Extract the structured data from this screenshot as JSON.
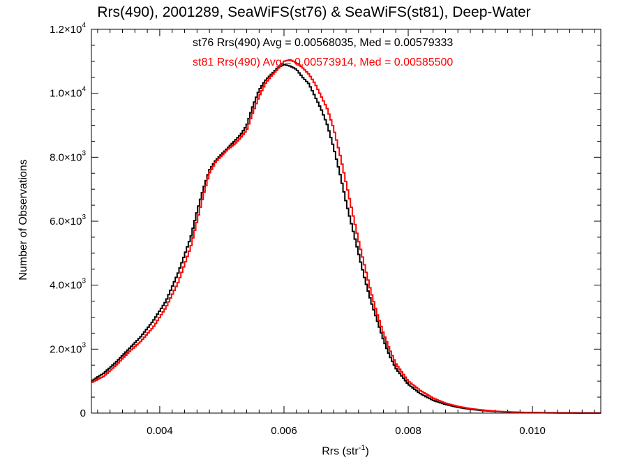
{
  "chart_data": {
    "type": "line",
    "title": "Rrs(490), 2001289, SeaWiFS(st76) & SeaWiFS(st81), Deep-Water",
    "xlabel_main": "Rrs (str",
    "xlabel_sup": "-1",
    "xlabel_close": ")",
    "ylabel": "Number of Observations",
    "xlim": [
      0.0029,
      0.0111
    ],
    "ylim": [
      0,
      12000
    ],
    "grid": false,
    "x_ticks": [
      {
        "value": 0.004,
        "label": "0.004"
      },
      {
        "value": 0.006,
        "label": "0.006"
      },
      {
        "value": 0.008,
        "label": "0.008"
      },
      {
        "value": 0.01,
        "label": "0.010"
      }
    ],
    "y_ticks": [
      {
        "value": 0,
        "label": "0",
        "sup": ""
      },
      {
        "value": 2000,
        "label": "2.0×10",
        "sup": "3"
      },
      {
        "value": 4000,
        "label": "4.0×10",
        "sup": "3"
      },
      {
        "value": 6000,
        "label": "6.0×10",
        "sup": "3"
      },
      {
        "value": 8000,
        "label": "8.0×10",
        "sup": "3"
      },
      {
        "value": 10000,
        "label": "1.0×10",
        "sup": "4"
      },
      {
        "value": 12000,
        "label": "1.2×10",
        "sup": "4"
      }
    ],
    "annotations": {
      "st76": "st76 Rrs(490) Avg = 0.00568035, Med = 0.00579333",
      "st81": "st81 Rrs(490) Avg = 0.00573914, Med = 0.00585500"
    },
    "series": [
      {
        "name": "st76",
        "color": "#000000",
        "x": [
          0.0029,
          0.0031,
          0.0033,
          0.0035,
          0.0037,
          0.0039,
          0.0041,
          0.0043,
          0.0045,
          0.0046,
          0.0047,
          0.0048,
          0.0049,
          0.005,
          0.0051,
          0.0052,
          0.0053,
          0.0054,
          0.0055,
          0.0056,
          0.0057,
          0.0058,
          0.0059,
          0.006,
          0.0061,
          0.0062,
          0.0063,
          0.0064,
          0.0065,
          0.0066,
          0.0067,
          0.0068,
          0.0069,
          0.007,
          0.0071,
          0.0072,
          0.0073,
          0.0074,
          0.0075,
          0.0076,
          0.0077,
          0.0078,
          0.008,
          0.0082,
          0.0084,
          0.0086,
          0.0088,
          0.009,
          0.0092,
          0.0094,
          0.0096,
          0.0098,
          0.01,
          0.0102,
          0.0104,
          0.0106,
          0.0108,
          0.011,
          0.0111
        ],
        "y": [
          1000,
          1250,
          1600,
          2000,
          2400,
          2900,
          3500,
          4400,
          5500,
          6300,
          7000,
          7600,
          7900,
          8100,
          8300,
          8500,
          8700,
          9000,
          9600,
          10100,
          10400,
          10600,
          10800,
          10900,
          10850,
          10750,
          10500,
          10300,
          9900,
          9500,
          9000,
          8300,
          7500,
          6600,
          5800,
          5000,
          4200,
          3500,
          2900,
          2300,
          1800,
          1400,
          900,
          600,
          400,
          270,
          180,
          120,
          80,
          50,
          35,
          22,
          15,
          10,
          7,
          5,
          3,
          2,
          2
        ]
      },
      {
        "name": "st81",
        "color": "#ff0000",
        "x": [
          0.0029,
          0.0031,
          0.0033,
          0.0035,
          0.0037,
          0.0039,
          0.0041,
          0.0043,
          0.0045,
          0.0046,
          0.0047,
          0.0048,
          0.0049,
          0.005,
          0.0051,
          0.0052,
          0.0053,
          0.0054,
          0.0055,
          0.0056,
          0.0057,
          0.0058,
          0.0059,
          0.006,
          0.0061,
          0.0062,
          0.0063,
          0.0064,
          0.0065,
          0.0066,
          0.0067,
          0.0068,
          0.0069,
          0.007,
          0.0071,
          0.0072,
          0.0073,
          0.0074,
          0.0075,
          0.0076,
          0.0077,
          0.0078,
          0.008,
          0.0082,
          0.0084,
          0.0086,
          0.0088,
          0.009,
          0.0092,
          0.0094,
          0.0096,
          0.0098,
          0.01,
          0.0102,
          0.0104,
          0.0106,
          0.0108,
          0.011,
          0.0111
        ],
        "y": [
          950,
          1150,
          1500,
          1900,
          2250,
          2700,
          3300,
          4100,
          5200,
          6000,
          6800,
          7500,
          7850,
          8050,
          8250,
          8400,
          8600,
          8850,
          9400,
          9900,
          10300,
          10550,
          10750,
          11000,
          11050,
          10950,
          10800,
          10600,
          10300,
          9900,
          9500,
          8900,
          8100,
          7200,
          6300,
          5400,
          4600,
          3800,
          3100,
          2500,
          2000,
          1550,
          1000,
          700,
          470,
          310,
          210,
          140,
          95,
          60,
          40,
          26,
          18,
          12,
          8,
          6,
          4,
          3,
          2
        ]
      }
    ]
  }
}
